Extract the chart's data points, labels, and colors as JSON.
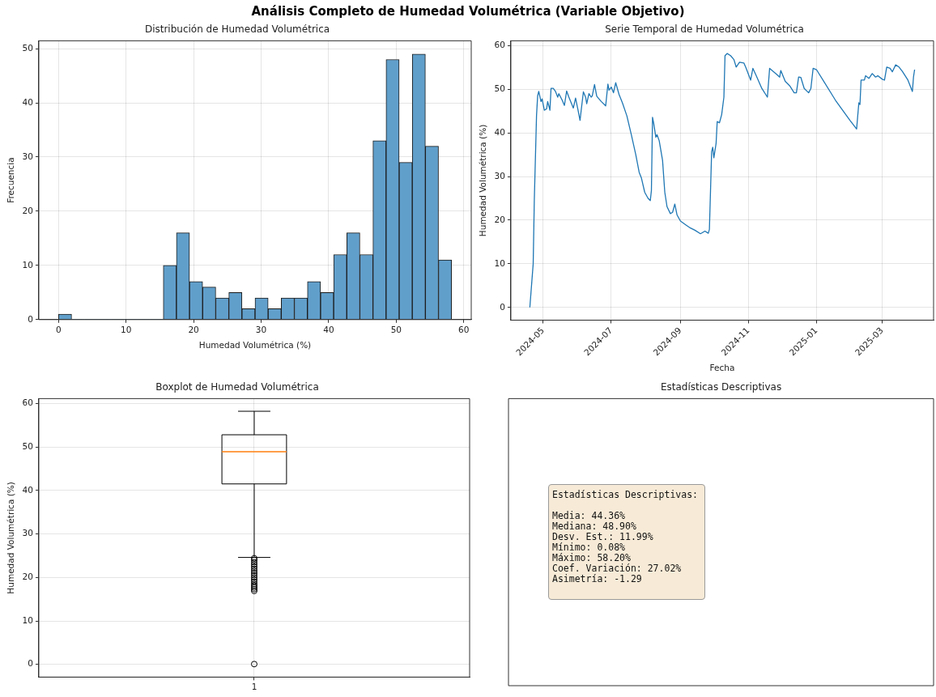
{
  "chart_data": [
    {
      "type": "other",
      "title": "Análisis Completo de Humedad Volumétrica (Variable Objetivo)"
    },
    {
      "type": "histogram",
      "title": "Distribución de Humedad Volumétrica",
      "xlabel": "Humedad Volumétrica (%)",
      "ylabel": "Frecuencia",
      "color": "#619fcb",
      "bins": [
        0,
        1.94,
        3.88,
        5.82,
        7.76,
        9.7,
        11.64,
        13.58,
        15.52,
        17.46,
        19.4,
        21.34,
        23.28,
        25.22,
        27.16,
        29.1,
        31.04,
        32.98,
        34.92,
        36.86,
        38.8,
        40.74,
        42.68,
        44.62,
        46.56,
        48.5,
        50.44,
        52.38,
        54.32,
        56.26,
        58.2
      ],
      "values": [
        1,
        0,
        0,
        0,
        0,
        0,
        0,
        0,
        10,
        16,
        7,
        6,
        4,
        5,
        2,
        4,
        2,
        4,
        4,
        7,
        5,
        12,
        16,
        12,
        33,
        48,
        29,
        49,
        32,
        11
      ],
      "xlim": [
        -2.91,
        61.11
      ],
      "xticks": [
        0,
        10,
        20,
        30,
        40,
        50,
        60
      ],
      "ylim": [
        0,
        51.45
      ],
      "yticks": [
        0,
        10,
        20,
        30,
        40,
        50
      ],
      "grid": true
    },
    {
      "type": "line",
      "title": "Serie Temporal de Humedad Volumétrica",
      "xlabel": "Fecha",
      "ylabel": "Humedad Volumétrica (%)",
      "color": "#1f77b4",
      "x": [
        "2024-04-19",
        "2024-04-22",
        "2024-04-23",
        "2024-04-25",
        "2024-04-26",
        "2024-04-27",
        "2024-04-29",
        "2024-04-30",
        "2024-05-02",
        "2024-05-04",
        "2024-05-05",
        "2024-05-07",
        "2024-05-08",
        "2024-05-10",
        "2024-05-12",
        "2024-05-14",
        "2024-05-15",
        "2024-05-18",
        "2024-05-20",
        "2024-05-22",
        "2024-05-24",
        "2024-05-28",
        "2024-05-30",
        "2024-06-01",
        "2024-06-03",
        "2024-06-06",
        "2024-06-08",
        "2024-06-09",
        "2024-06-11",
        "2024-06-13",
        "2024-06-14",
        "2024-06-16",
        "2024-06-18",
        "2024-06-22",
        "2024-06-26",
        "2024-06-28",
        "2024-06-29",
        "2024-07-01",
        "2024-07-03",
        "2024-07-05",
        "2024-07-08",
        "2024-07-11",
        "2024-07-15",
        "2024-07-19",
        "2024-07-23",
        "2024-07-26",
        "2024-07-28",
        "2024-07-31",
        "2024-08-03",
        "2024-08-05",
        "2024-08-06",
        "2024-08-07",
        "2024-08-08",
        "2024-08-10",
        "2024-08-11",
        "2024-08-13",
        "2024-08-16",
        "2024-08-18",
        "2024-08-20",
        "2024-08-23",
        "2024-08-25",
        "2024-08-27",
        "2024-08-29",
        "2024-09-01",
        "2024-09-06",
        "2024-09-10",
        "2024-09-14",
        "2024-09-19",
        "2024-09-23",
        "2024-09-26",
        "2024-09-27",
        "2024-09-29",
        "2024-09-30",
        "2024-10-01",
        "2024-10-03",
        "2024-10-04",
        "2024-10-06",
        "2024-10-08",
        "2024-10-10",
        "2024-10-11",
        "2024-10-13",
        "2024-10-16",
        "2024-10-19",
        "2024-10-21",
        "2024-10-24",
        "2024-10-28",
        "2024-10-30",
        "2024-11-03",
        "2024-11-05",
        "2024-11-08",
        "2024-11-13",
        "2024-11-18",
        "2024-11-20",
        "2024-11-26",
        "2024-11-29",
        "2024-11-30",
        "2024-12-04",
        "2024-12-08",
        "2024-12-12",
        "2024-12-14",
        "2024-12-16",
        "2024-12-18",
        "2024-12-21",
        "2024-12-25",
        "2024-12-27",
        "2024-12-29",
        "2025-01-01",
        "2025-01-18",
        "2025-01-31",
        "2025-02-06",
        "2025-02-08",
        "2025-02-09",
        "2025-02-10",
        "2025-02-13",
        "2025-02-14",
        "2025-02-17",
        "2025-02-20",
        "2025-02-23",
        "2025-02-25",
        "2025-03-01",
        "2025-03-03",
        "2025-03-05",
        "2025-03-08",
        "2025-03-10",
        "2025-03-13",
        "2025-03-16",
        "2025-03-19",
        "2025-03-24",
        "2025-03-28",
        "2025-03-29",
        "2025-03-30"
      ],
      "values": [
        0,
        10,
        24.5,
        44,
        48.5,
        49.5,
        47.2,
        47.8,
        45.2,
        45.5,
        47.2,
        45.2,
        50.2,
        50.2,
        49.5,
        48.2,
        49,
        47.5,
        46.3,
        49.6,
        48.2,
        45.7,
        48,
        45.5,
        42.9,
        49.4,
        48.2,
        46.7,
        49,
        48.2,
        48.5,
        51.1,
        48.4,
        47.2,
        46.2,
        51.2,
        49.8,
        50.5,
        49.2,
        51.5,
        48.8,
        46.9,
        43.9,
        39.6,
        35,
        31,
        29.7,
        26.4,
        25,
        24.5,
        26.8,
        43.6,
        42.3,
        39,
        39.6,
        38.2,
        33.7,
        26.4,
        23.1,
        21.5,
        21.8,
        23.7,
        21.2,
        19.8,
        18.9,
        18.2,
        17.7,
        16.9,
        17.5,
        17,
        17.9,
        35.7,
        36.7,
        34.3,
        37.6,
        42.6,
        42.3,
        44.2,
        48.2,
        57.7,
        58.2,
        57.7,
        56.8,
        55.1,
        56.2,
        56,
        54.8,
        52.1,
        54.8,
        53.1,
        50.2,
        48.2,
        54.8,
        53.5,
        52.8,
        54.3,
        51.8,
        50.8,
        49.2,
        49.2,
        52.8,
        52.7,
        50.2,
        49.2,
        50.2,
        54.8,
        54.5,
        47.5,
        42.9,
        40.9,
        46.9,
        46.5,
        52.1,
        52.1,
        53.1,
        52.5,
        53.6,
        52.8,
        53.1,
        52.3,
        52.1,
        55.1,
        54.8,
        54,
        55.6,
        55.1,
        54.1,
        52.1,
        49.5,
        52.8,
        54.5
      ],
      "xlim": [
        "2024-04-02",
        "2025-04-16"
      ],
      "xticks": [
        "2024-05",
        "2024-07",
        "2024-09",
        "2024-11",
        "2025-01",
        "2025-03"
      ],
      "ylim": [
        -2.91,
        61.11
      ],
      "yticks": [
        0,
        10,
        20,
        30,
        40,
        50,
        60
      ],
      "grid": true
    },
    {
      "type": "box",
      "title": "Boxplot de Humedad Volumétrica",
      "ylabel": "Humedad Volumétrica (%)",
      "categories": [
        "1"
      ],
      "boxes": [
        {
          "low": 24.6,
          "q1": 41.5,
          "median": 48.9,
          "q3": 52.8,
          "high": 58.2,
          "outliers": [
            0.08,
            16.9,
            17.3,
            17.7,
            18.1,
            18.5,
            19,
            19.5,
            20,
            20.5,
            21,
            21.5,
            22,
            22.5,
            23,
            23.5,
            24,
            24.4
          ]
        }
      ],
      "ylim": [
        -2.91,
        61.11
      ],
      "yticks": [
        0,
        10,
        20,
        30,
        40,
        50,
        60
      ],
      "grid": true
    },
    {
      "type": "other",
      "title": "Estadísticas Descriptivas",
      "annotations": [
        "Estadísticas Descriptivas:",
        "Media: 44.36%",
        "Mediana: 48.90%",
        "Desv. Est.: 11.99%",
        "Mínimo: 0.08%",
        "Máximo: 58.20%",
        "Coef. Variación: 27.02%",
        "Asimetría: -1.29"
      ]
    }
  ]
}
